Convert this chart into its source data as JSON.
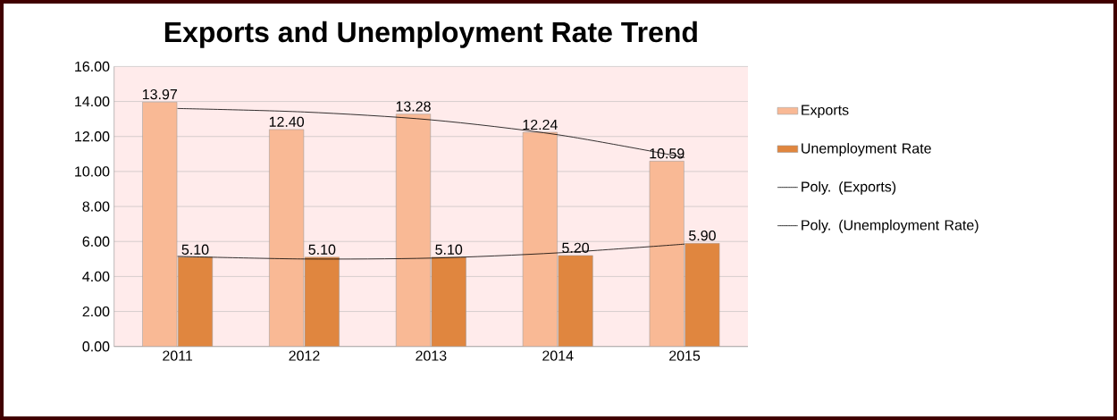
{
  "chart_data": {
    "type": "bar",
    "title": "Exports and Unemployment Rate Trend",
    "categories": [
      "2011",
      "2012",
      "2013",
      "2014",
      "2015"
    ],
    "series": [
      {
        "name": "Exports",
        "color": "#f9b995",
        "values": [
          13.97,
          12.4,
          13.28,
          12.24,
          10.59
        ],
        "value_labels": [
          "13.97",
          "12.40",
          "13.28",
          "12.24",
          "10.59"
        ]
      },
      {
        "name": "Unemployment Rate",
        "color": "#e0863f",
        "values": [
          5.1,
          5.1,
          5.1,
          5.2,
          5.9
        ],
        "value_labels": [
          "5.10",
          "5.10",
          "5.10",
          "5.20",
          "5.90"
        ]
      },
      {
        "name": "Poly. (Exports)",
        "type": "line",
        "color": "#000000",
        "values": [
          13.6,
          13.4,
          12.95,
          12.1,
          10.8
        ]
      },
      {
        "name": "Poly. (Unemployment Rate)",
        "type": "line",
        "color": "#000000",
        "values": [
          5.15,
          5.0,
          5.05,
          5.35,
          5.85
        ]
      }
    ],
    "ylim": [
      0,
      16
    ],
    "yticks": [
      {
        "value": 0,
        "label": "0.00"
      },
      {
        "value": 2,
        "label": "2.00"
      },
      {
        "value": 4,
        "label": "4.00"
      },
      {
        "value": 6,
        "label": "6.00"
      },
      {
        "value": 8,
        "label": "8.00"
      },
      {
        "value": 10,
        "label": "10.00"
      },
      {
        "value": 12,
        "label": "12.00"
      },
      {
        "value": 14,
        "label": "14.00"
      },
      {
        "value": 16,
        "label": "16.00"
      }
    ],
    "grid": "y",
    "legend": "right"
  }
}
